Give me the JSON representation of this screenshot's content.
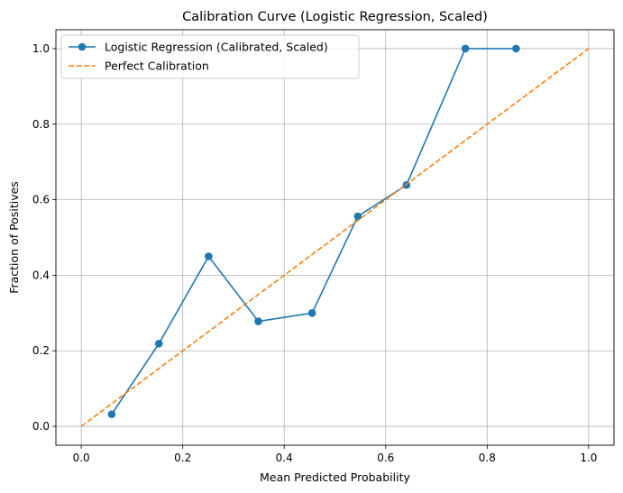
{
  "chart_data": {
    "type": "line",
    "title": "Calibration Curve (Logistic Regression, Scaled)",
    "xlabel": "Mean Predicted Probability",
    "ylabel": "Fraction of Positives",
    "xlim": [
      -0.05,
      1.05
    ],
    "ylim": [
      -0.05,
      1.05
    ],
    "xticks": [
      0.0,
      0.2,
      0.4,
      0.6,
      0.8,
      1.0
    ],
    "yticks": [
      0.0,
      0.2,
      0.4,
      0.6,
      0.8,
      1.0
    ],
    "xtick_labels": [
      "0.0",
      "0.2",
      "0.4",
      "0.6",
      "0.8",
      "1.0"
    ],
    "ytick_labels": [
      "0.0",
      "0.2",
      "0.4",
      "0.6",
      "0.8",
      "1.0"
    ],
    "grid": true,
    "legend_position": "top-left",
    "series": [
      {
        "name": "Logistic Regression (Calibrated, Scaled)",
        "style": "solid-markers",
        "color": "#1f77b4",
        "x": [
          0.06,
          0.153,
          0.251,
          0.349,
          0.455,
          0.545,
          0.641,
          0.757,
          0.857
        ],
        "y": [
          0.032,
          0.219,
          0.45,
          0.278,
          0.3,
          0.556,
          0.639,
          1.0,
          1.0
        ]
      },
      {
        "name": "Perfect Calibration",
        "style": "dashed",
        "color": "#ff7f0e",
        "x": [
          0.0,
          1.0
        ],
        "y": [
          0.0,
          1.0
        ]
      }
    ]
  }
}
